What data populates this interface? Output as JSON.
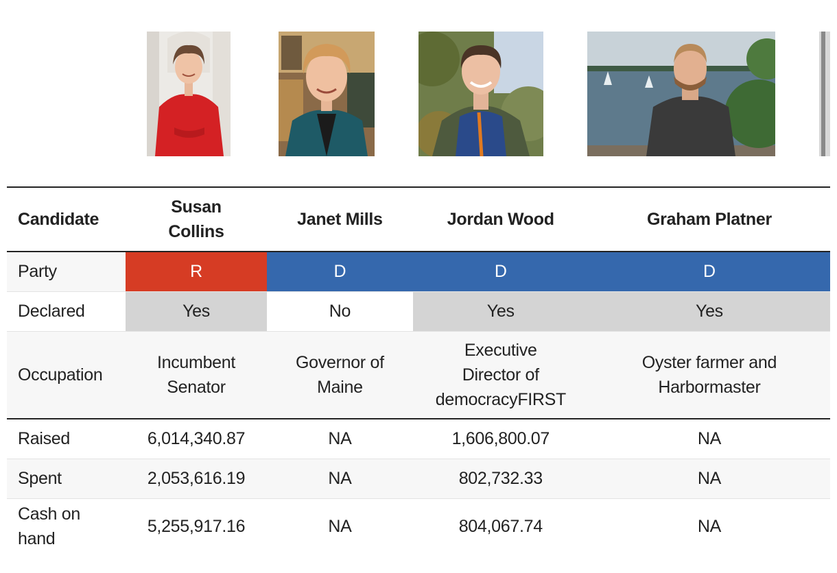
{
  "colors": {
    "republican": "#d63c24",
    "democrat": "#3568ad",
    "declared_yes": "#d4d4d4"
  },
  "photos": [
    {
      "candidate": "Susan Collins",
      "icon": "portrait-photo"
    },
    {
      "candidate": "Janet Mills",
      "icon": "portrait-photo"
    },
    {
      "candidate": "Jordan Wood",
      "icon": "portrait-photo"
    },
    {
      "candidate": "Graham Platner",
      "icon": "portrait-photo"
    }
  ],
  "table": {
    "row_labels": {
      "candidate": "Candidate",
      "party": "Party",
      "declared": "Declared",
      "occupation": "Occupation",
      "raised": "Raised",
      "spent": "Spent",
      "cash": "Cash on hand"
    },
    "candidates": [
      {
        "name": "Susan Collins",
        "party": "R",
        "declared": "Yes",
        "occupation": "Incumbent Senator",
        "raised": "6,014,340.87",
        "spent": "2,053,616.19",
        "cash": "5,255,917.16"
      },
      {
        "name": "Janet Mills",
        "party": "D",
        "declared": "No",
        "occupation": "Governor of Maine",
        "raised": "NA",
        "spent": "NA",
        "cash": "NA"
      },
      {
        "name": "Jordan Wood",
        "party": "D",
        "declared": "Yes",
        "occupation": "Executive Director of democracyFIRST",
        "raised": "1,606,800.07",
        "spent": "802,732.33",
        "cash": "804,067.74"
      },
      {
        "name": "Graham Platner",
        "party": "D",
        "declared": "Yes",
        "occupation": "Oyster farmer and Harbormaster",
        "raised": "NA",
        "spent": "NA",
        "cash": "NA"
      }
    ]
  }
}
